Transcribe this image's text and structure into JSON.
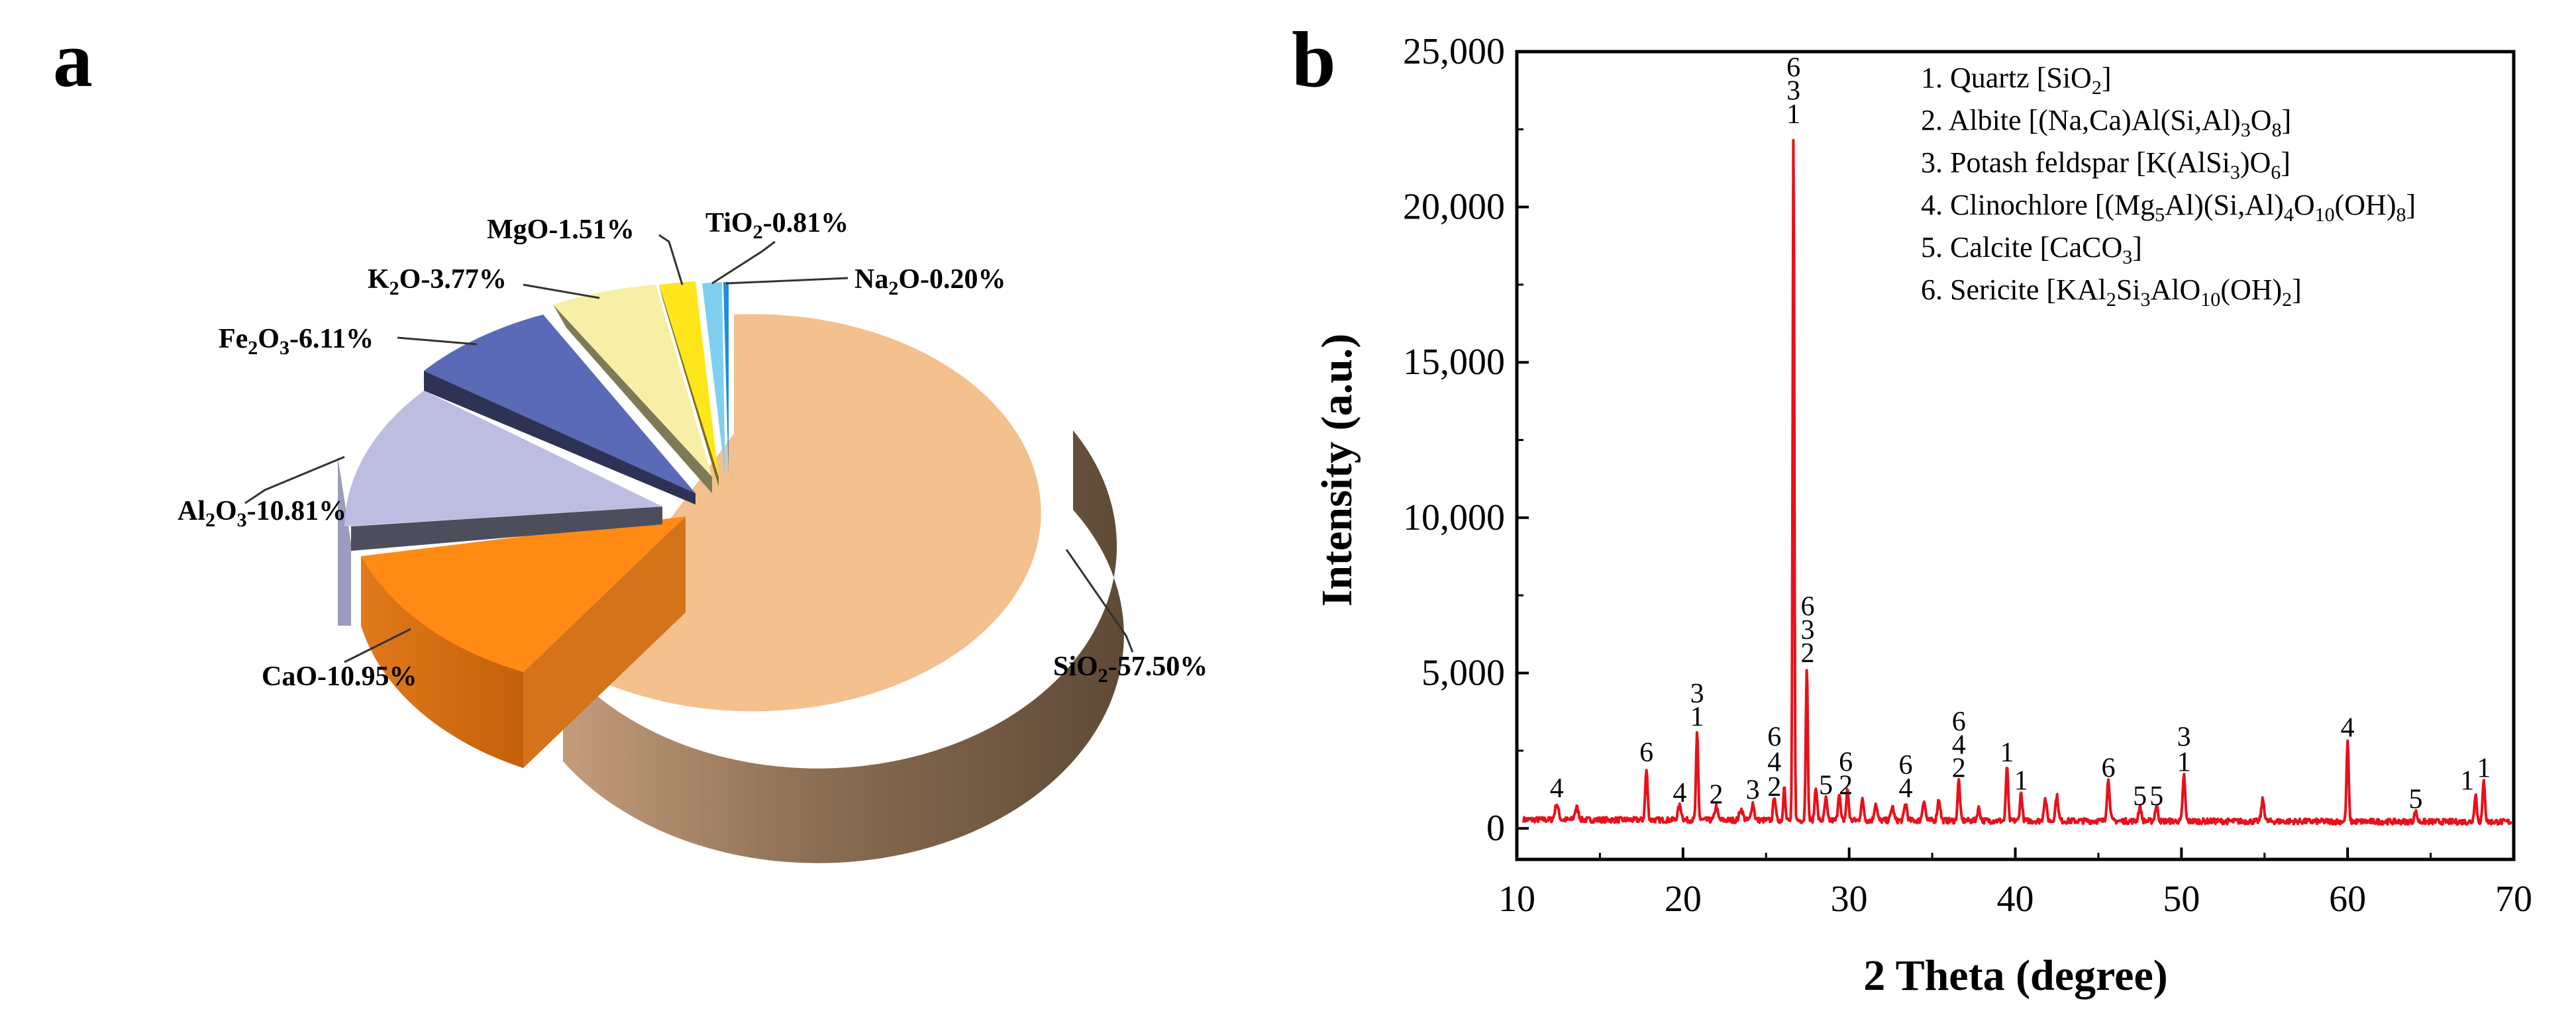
{
  "chart_data": [
    {
      "panel": "a",
      "type": "pie",
      "categories": [
        {
          "key": "SiO2",
          "value": 57.5,
          "color": "#F4C08E"
        },
        {
          "key": "CaO",
          "value": 10.95,
          "color": "#FF8A14"
        },
        {
          "key": "Al2O3",
          "value": 10.81,
          "color": "#BDBDE1"
        },
        {
          "key": "Fe2O3",
          "value": 6.11,
          "color": "#5A6AB6"
        },
        {
          "key": "K2O",
          "value": 3.77,
          "color": "#F8EFA6"
        },
        {
          "key": "MgO",
          "value": 1.51,
          "color": "#FFE61A"
        },
        {
          "key": "TiO2",
          "value": 0.81,
          "color": "#7FD0F0"
        },
        {
          "key": "Na2O",
          "value": 0.2,
          "color": "#1E8FD8"
        }
      ],
      "labels": {
        "SiO2": {
          "pre": "SiO",
          "sub": "2",
          "post": "-57.50%"
        },
        "CaO": {
          "pre": "CaO",
          "sub": "",
          "post": "-10.95%"
        },
        "Al2O3": {
          "pre": "Al",
          "sub": "2",
          "mid": "O",
          "sub2": "3",
          "post": "-10.81%"
        },
        "Fe2O3": {
          "pre": "Fe",
          "sub": "2",
          "mid": "O",
          "sub2": "3",
          "post": "-6.11%"
        },
        "K2O": {
          "pre": "K",
          "sub": "2",
          "mid": "O",
          "sub2": "",
          "post": "-3.77%"
        },
        "MgO": {
          "pre": "MgO",
          "sub": "",
          "post": "-1.51%"
        },
        "TiO2": {
          "pre": "TiO",
          "sub": "2",
          "post": "-0.81%"
        },
        "Na2O": {
          "pre": "Na",
          "sub": "2",
          "mid": "O",
          "sub2": "",
          "post": "-0.20%"
        }
      }
    },
    {
      "panel": "b",
      "type": "line",
      "xlabel": "2 Theta (degree)",
      "ylabel": "Intensity (a.u.)",
      "xlim": [
        10,
        70
      ],
      "ylim": [
        -1000,
        25000
      ],
      "xticks": [
        10,
        20,
        30,
        40,
        50,
        60,
        70
      ],
      "yticks": [
        0,
        5000,
        10000,
        15000,
        20000,
        25000
      ],
      "ytick_labels": [
        "0",
        "5,000",
        "10,000",
        "15,000",
        "20,000",
        "25,000"
      ],
      "line_color": "#E8101A",
      "baseline": 280,
      "peaks": [
        {
          "x": 12.4,
          "y": 500,
          "w": 0.15
        },
        {
          "x": 13.6,
          "y": 400,
          "w": 0.15
        },
        {
          "x": 17.8,
          "y": 1600,
          "w": 0.1
        },
        {
          "x": 19.8,
          "y": 450,
          "w": 0.15
        },
        {
          "x": 20.85,
          "y": 2800,
          "w": 0.09
        },
        {
          "x": 22.0,
          "y": 450,
          "w": 0.12
        },
        {
          "x": 23.5,
          "y": 350,
          "w": 0.15
        },
        {
          "x": 24.2,
          "y": 550,
          "w": 0.12
        },
        {
          "x": 25.5,
          "y": 800,
          "w": 0.1
        },
        {
          "x": 26.1,
          "y": 1200,
          "w": 0.08
        },
        {
          "x": 26.65,
          "y": 22300,
          "w": 0.07
        },
        {
          "x": 27.45,
          "y": 5000,
          "w": 0.08
        },
        {
          "x": 28.0,
          "y": 1100,
          "w": 0.1
        },
        {
          "x": 28.6,
          "y": 700,
          "w": 0.1
        },
        {
          "x": 29.4,
          "y": 900,
          "w": 0.1
        },
        {
          "x": 29.9,
          "y": 1000,
          "w": 0.1
        },
        {
          "x": 30.8,
          "y": 650,
          "w": 0.12
        },
        {
          "x": 31.6,
          "y": 550,
          "w": 0.12
        },
        {
          "x": 32.6,
          "y": 450,
          "w": 0.12
        },
        {
          "x": 33.4,
          "y": 550,
          "w": 0.12
        },
        {
          "x": 34.5,
          "y": 650,
          "w": 0.12
        },
        {
          "x": 35.4,
          "y": 700,
          "w": 0.12
        },
        {
          "x": 36.6,
          "y": 1300,
          "w": 0.1
        },
        {
          "x": 37.8,
          "y": 400,
          "w": 0.12
        },
        {
          "x": 39.5,
          "y": 1800,
          "w": 0.09
        },
        {
          "x": 40.35,
          "y": 900,
          "w": 0.1
        },
        {
          "x": 41.8,
          "y": 700,
          "w": 0.12
        },
        {
          "x": 42.5,
          "y": 800,
          "w": 0.12
        },
        {
          "x": 45.6,
          "y": 1300,
          "w": 0.12
        },
        {
          "x": 47.5,
          "y": 450,
          "w": 0.12
        },
        {
          "x": 48.5,
          "y": 500,
          "w": 0.12
        },
        {
          "x": 50.15,
          "y": 1500,
          "w": 0.1
        },
        {
          "x": 54.9,
          "y": 700,
          "w": 0.12
        },
        {
          "x": 60.0,
          "y": 2600,
          "w": 0.09
        },
        {
          "x": 64.1,
          "y": 300,
          "w": 0.12
        },
        {
          "x": 67.7,
          "y": 900,
          "w": 0.1
        },
        {
          "x": 68.2,
          "y": 1300,
          "w": 0.1
        }
      ],
      "peak_labels": [
        {
          "x": 12.4,
          "y": 1000,
          "text": "4"
        },
        {
          "x": 17.8,
          "y": 2150,
          "text": "6"
        },
        {
          "x": 19.8,
          "y": 850,
          "text": "4"
        },
        {
          "x": 20.85,
          "y": 3300,
          "text": "1"
        },
        {
          "x": 20.85,
          "y": 4050,
          "text": "3"
        },
        {
          "x": 22.0,
          "y": 800,
          "text": "2"
        },
        {
          "x": 24.2,
          "y": 950,
          "text": "3"
        },
        {
          "x": 25.5,
          "y": 1050,
          "text": "2"
        },
        {
          "x": 25.5,
          "y": 1850,
          "text": "4"
        },
        {
          "x": 25.5,
          "y": 2650,
          "text": "6"
        },
        {
          "x": 26.65,
          "y": 22700,
          "text": "1"
        },
        {
          "x": 26.65,
          "y": 23450,
          "text": "3"
        },
        {
          "x": 26.65,
          "y": 24200,
          "text": "6"
        },
        {
          "x": 27.5,
          "y": 5350,
          "text": "2"
        },
        {
          "x": 27.5,
          "y": 6100,
          "text": "3"
        },
        {
          "x": 27.5,
          "y": 6850,
          "text": "6"
        },
        {
          "x": 28.6,
          "y": 1100,
          "text": "5"
        },
        {
          "x": 29.8,
          "y": 1100,
          "text": "2"
        },
        {
          "x": 29.8,
          "y": 1850,
          "text": "6"
        },
        {
          "x": 33.4,
          "y": 1000,
          "text": "4"
        },
        {
          "x": 33.4,
          "y": 1750,
          "text": "6"
        },
        {
          "x": 36.6,
          "y": 1650,
          "text": "2"
        },
        {
          "x": 36.6,
          "y": 2400,
          "text": "4"
        },
        {
          "x": 36.6,
          "y": 3150,
          "text": "6"
        },
        {
          "x": 39.5,
          "y": 2150,
          "text": "1"
        },
        {
          "x": 40.35,
          "y": 1250,
          "text": "1"
        },
        {
          "x": 45.6,
          "y": 1650,
          "text": "6"
        },
        {
          "x": 47.5,
          "y": 750,
          "text": "5"
        },
        {
          "x": 48.5,
          "y": 750,
          "text": "5"
        },
        {
          "x": 50.15,
          "y": 1850,
          "text": "1"
        },
        {
          "x": 50.15,
          "y": 2650,
          "text": "3"
        },
        {
          "x": 60.0,
          "y": 2950,
          "text": "4"
        },
        {
          "x": 64.1,
          "y": 650,
          "text": "5"
        },
        {
          "x": 67.2,
          "y": 1250,
          "text": "1"
        },
        {
          "x": 68.2,
          "y": 1650,
          "text": "1"
        }
      ],
      "legend": [
        {
          "n": "1.",
          "parts": [
            [
              "Quartz [SiO",
              ""
            ],
            [
              "2",
              "sub"
            ],
            [
              "]",
              ""
            ]
          ]
        },
        {
          "n": "2.",
          "parts": [
            [
              "Albite [(Na,Ca)Al(Si,Al)",
              ""
            ],
            [
              "3",
              "sub"
            ],
            [
              "O",
              ""
            ],
            [
              "8",
              "sub"
            ],
            [
              "]",
              ""
            ]
          ]
        },
        {
          "n": "3.",
          "parts": [
            [
              "Potash feldspar [K(AlSi",
              ""
            ],
            [
              "3",
              "sub"
            ],
            [
              ")O",
              ""
            ],
            [
              "6",
              "sub"
            ],
            [
              "]",
              ""
            ]
          ]
        },
        {
          "n": "4.",
          "parts": [
            [
              "Clinochlore [(Mg",
              ""
            ],
            [
              "5",
              "sub"
            ],
            [
              "Al)(Si,Al)",
              ""
            ],
            [
              "4",
              "sub"
            ],
            [
              "O",
              ""
            ],
            [
              "10",
              "sub"
            ],
            [
              "(OH)",
              ""
            ],
            [
              "8",
              "sub"
            ],
            [
              "]",
              ""
            ]
          ]
        },
        {
          "n": "5.",
          "parts": [
            [
              "Calcite [CaCO",
              ""
            ],
            [
              "3",
              "sub"
            ],
            [
              "]",
              ""
            ]
          ]
        },
        {
          "n": "6.",
          "parts": [
            [
              "Sericite [KAl",
              ""
            ],
            [
              "2",
              "sub"
            ],
            [
              "Si",
              ""
            ],
            [
              "3",
              "sub"
            ],
            [
              "AlO",
              ""
            ],
            [
              "10",
              "sub"
            ],
            [
              "(OH)",
              ""
            ],
            [
              "2",
              "sub"
            ],
            [
              "]",
              ""
            ]
          ]
        }
      ]
    }
  ],
  "panels": {
    "a": "a",
    "b": "b"
  }
}
